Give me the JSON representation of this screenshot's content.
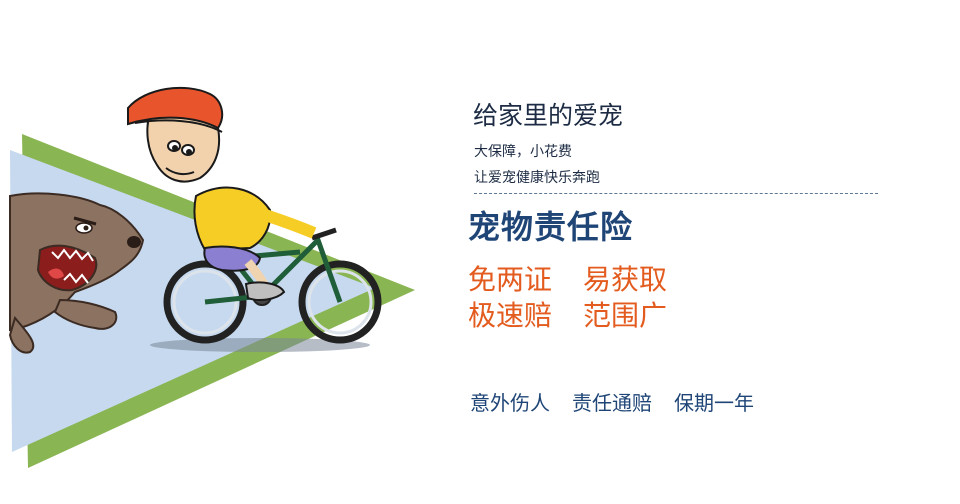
{
  "tagline": {
    "title": "给家里的爱宠",
    "subtitle1": "大保障，小花费",
    "subtitle2": "让爱宠健康快乐奔跑"
  },
  "product": {
    "name": "宠物责任险"
  },
  "features": [
    "免两证",
    "易获取",
    "极速赔",
    "范围广"
  ],
  "coverage": [
    "意外伤人",
    "责任通赔",
    "保期一年"
  ],
  "colors": {
    "navy": "#1f4577",
    "orange": "#e35b1e",
    "green_triangle": "#8ab553",
    "blue_triangle": "#c6d9ef"
  }
}
